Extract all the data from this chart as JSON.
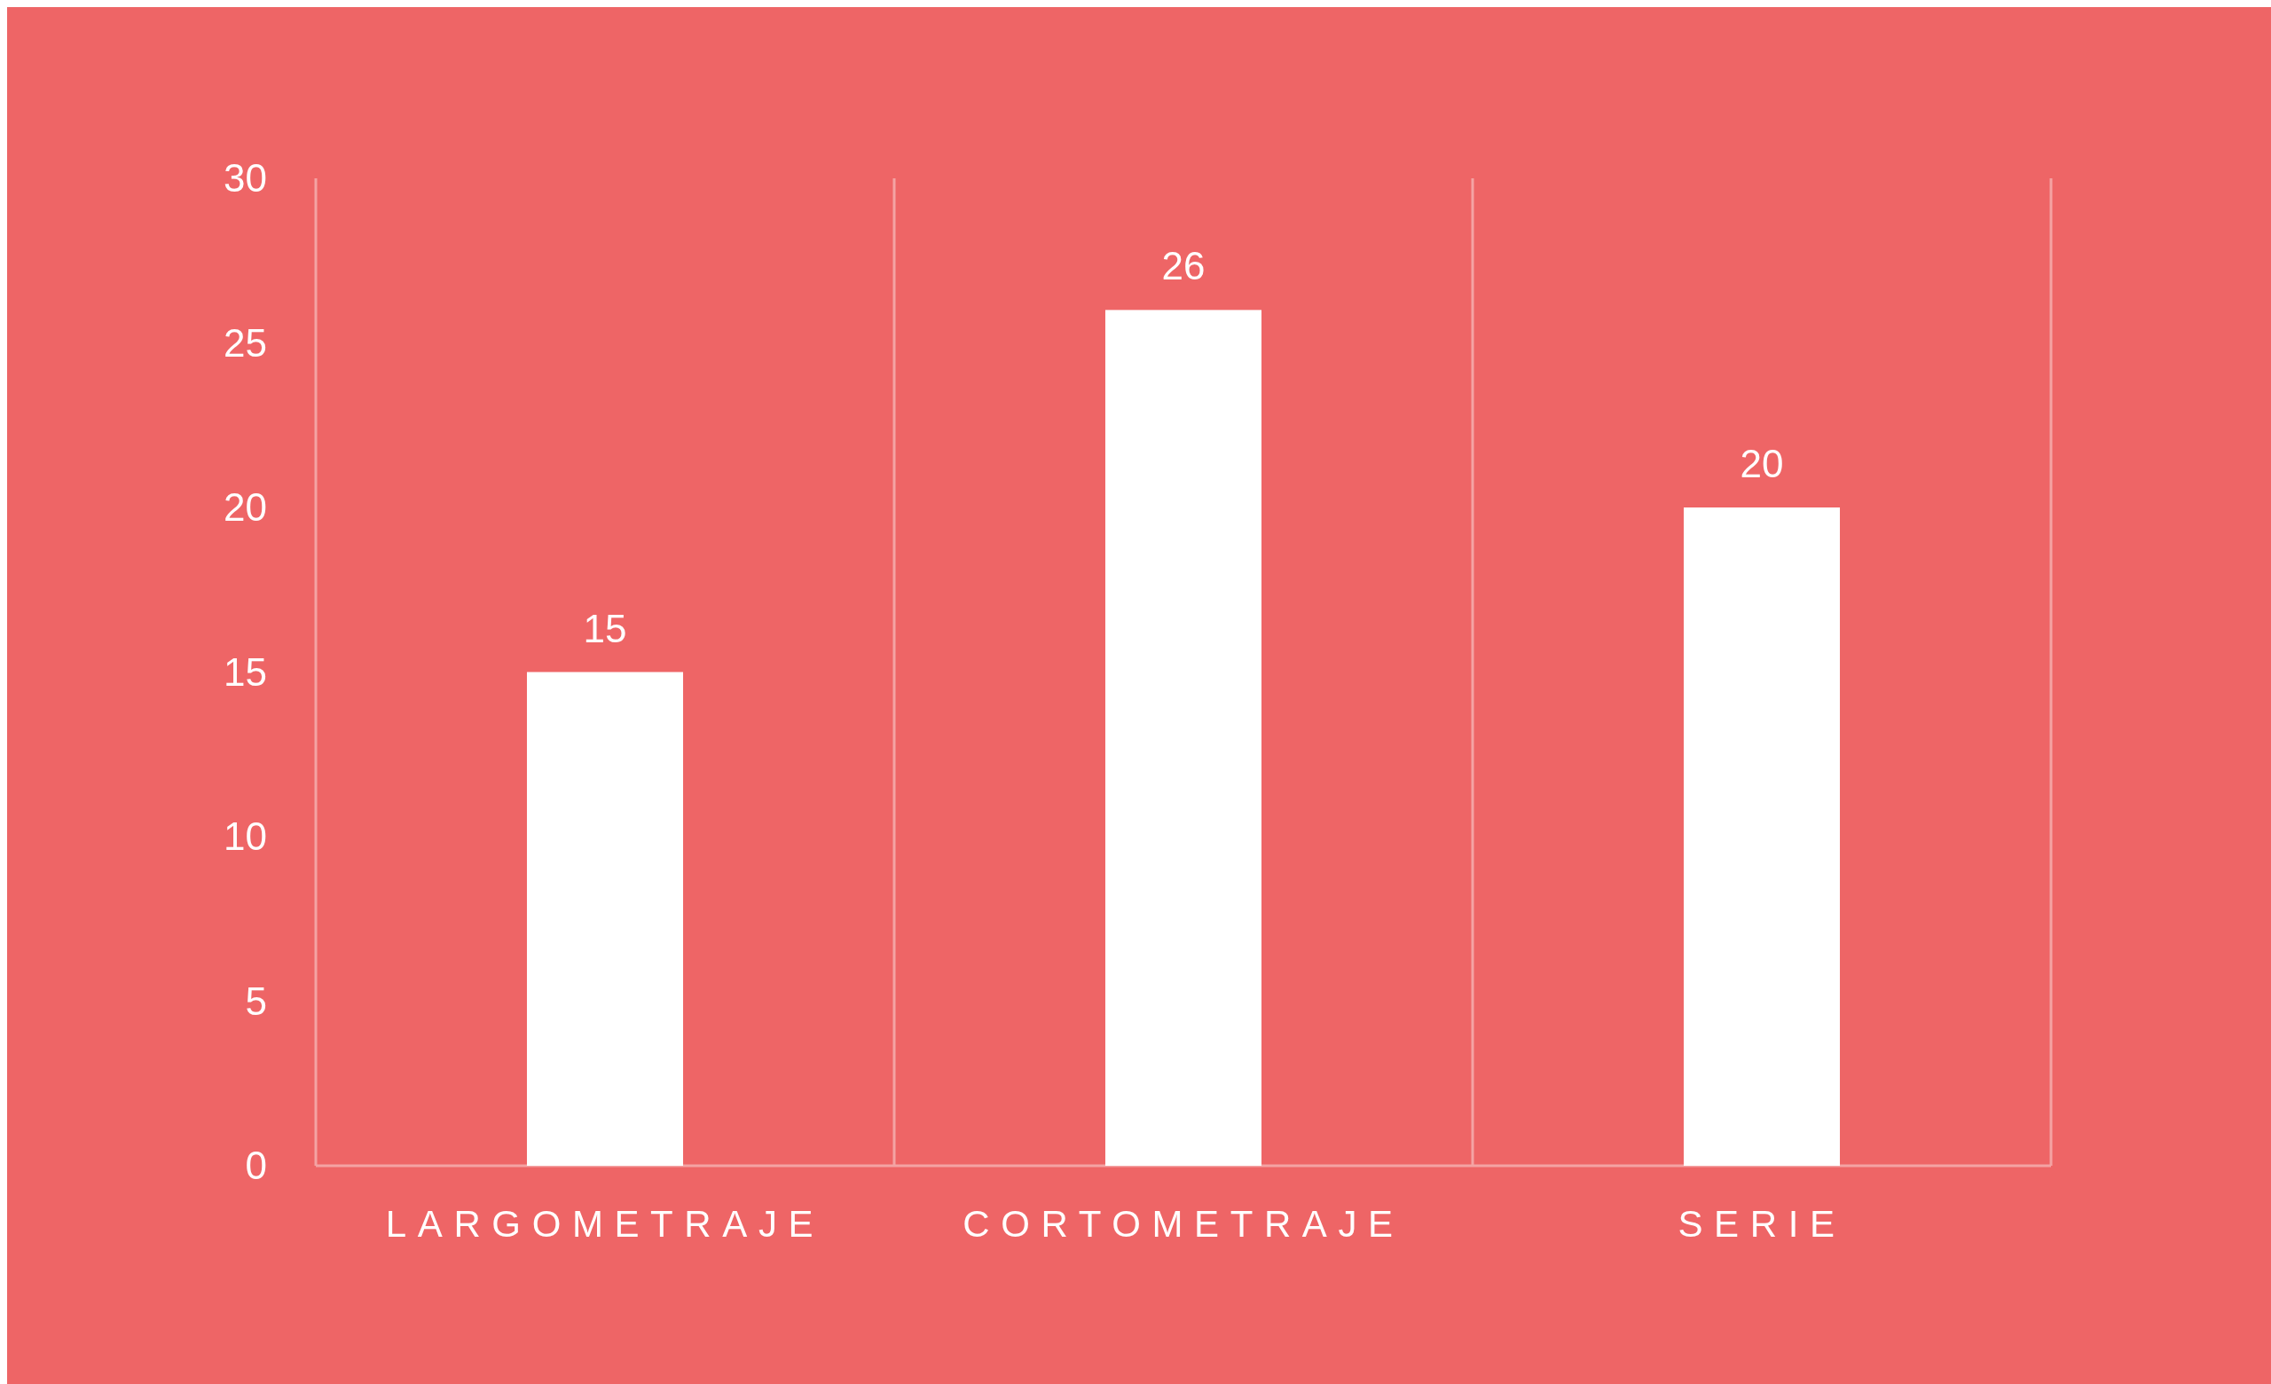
{
  "chart_data": {
    "type": "bar",
    "categories": [
      "LARGOMETRAJE",
      "CORTOMETRAJE",
      "SERIE"
    ],
    "values": [
      15,
      26,
      20
    ],
    "color": "#ffffff",
    "ylim": [
      0,
      30
    ],
    "yticks": [
      0,
      5,
      10,
      15,
      20,
      25,
      30
    ],
    "grid": "x",
    "data_labels": true
  }
}
